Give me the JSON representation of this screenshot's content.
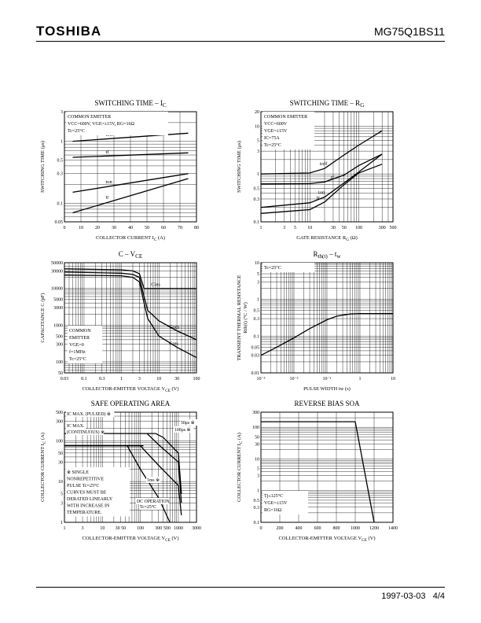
{
  "header": {
    "brand": "TOSHIBA",
    "part_number": "MG75Q1BS11"
  },
  "footer": {
    "date": "1997-03-03",
    "page": "4/4"
  },
  "chart_data": [
    {
      "id": "switching-time-ic",
      "type": "line",
      "title": "SWITCHING TIME – I",
      "title_sub": "C",
      "xlabel": "COLLECTOR CURRENT I",
      "xlabel_sub": "C",
      "xlabel_unit": "(A)",
      "ylabel": "SWITCHING TIME  (μs)",
      "xscale": "linear",
      "yscale": "log",
      "xlim": [
        0,
        80
      ],
      "ylim": [
        0.05,
        3
      ],
      "xticks": [
        0,
        10,
        20,
        30,
        40,
        50,
        60,
        70,
        80
      ],
      "yticks": [
        0.05,
        0.1,
        0.3,
        0.5,
        1,
        3
      ],
      "ytick_labels": [
        "0.05",
        "0.1",
        "0.3",
        "0.5",
        "1",
        "3"
      ],
      "notes": [
        "COMMON EMITTER",
        "VCC=600V, VGE=±15V, RG=16Ω",
        "Tc=25°C"
      ],
      "series": [
        {
          "name": "toff",
          "x": [
            5,
            75
          ],
          "y": [
            1.0,
            1.35
          ]
        },
        {
          "name": "tf",
          "x": [
            5,
            75
          ],
          "y": [
            0.55,
            0.65
          ]
        },
        {
          "name": "ton",
          "x": [
            5,
            75
          ],
          "y": [
            0.15,
            0.3
          ]
        },
        {
          "name": "tr",
          "x": [
            5,
            75
          ],
          "y": [
            0.07,
            0.25
          ]
        }
      ]
    },
    {
      "id": "switching-time-rg",
      "type": "line",
      "title": "SWITCHING TIME – R",
      "title_sub": "G",
      "xlabel": "GATE RESISTANCE  R",
      "xlabel_sub": "G",
      "xlabel_unit": "(Ω)",
      "ylabel": "SWITCHING TIME  (μs)",
      "xscale": "log",
      "yscale": "log",
      "xlim": [
        1,
        500
      ],
      "ylim": [
        0.1,
        20
      ],
      "xticks": [
        1,
        3,
        5,
        10,
        30,
        50,
        100,
        300,
        500
      ],
      "xtick_labels": [
        "1",
        "3",
        "5",
        "10",
        "30",
        "50",
        "100",
        "300",
        "500"
      ],
      "yticks": [
        0.1,
        0.3,
        0.5,
        1,
        3,
        5,
        10,
        20
      ],
      "ytick_labels": [
        "0.1",
        "0.3",
        "0.5",
        "1",
        "3",
        "5",
        "10",
        "20"
      ],
      "notes": [
        "COMMON EMITTER",
        "VCC=600V",
        "VGE=±15V",
        "IC=75A",
        "Tc=25°C"
      ],
      "series": [
        {
          "name": "toff",
          "x": [
            1,
            10,
            20,
            50,
            100,
            300
          ],
          "y": [
            1.0,
            1.05,
            1.3,
            2.5,
            4.0,
            8.0
          ]
        },
        {
          "name": "tf",
          "x": [
            1,
            10,
            20,
            50,
            100,
            300
          ],
          "y": [
            0.62,
            0.63,
            0.68,
            0.95,
            1.5,
            2.6
          ]
        },
        {
          "name": "ton",
          "x": [
            1,
            10,
            20,
            50,
            100,
            300
          ],
          "y": [
            0.2,
            0.25,
            0.33,
            0.65,
            1.1,
            2.6
          ]
        },
        {
          "name": "tr",
          "x": [
            1,
            10,
            20,
            50,
            100,
            300
          ],
          "y": [
            0.15,
            0.18,
            0.26,
            0.6,
            1.05,
            1.6
          ]
        }
      ]
    },
    {
      "id": "capacitance-vce",
      "type": "line",
      "title": "C – V",
      "title_sub": "CE",
      "xlabel": "COLLECTOR-EMITTER VOLTAGE  V",
      "xlabel_sub": "CE",
      "xlabel_unit": "(V)",
      "ylabel": "CAPACITANCE  C  (pF)",
      "xscale": "log",
      "yscale": "log",
      "xlim": [
        0.03,
        100
      ],
      "ylim": [
        50,
        50000
      ],
      "xticks": [
        0.03,
        0.1,
        0.3,
        1,
        3,
        10,
        30,
        100
      ],
      "xtick_labels": [
        "0.03",
        "0.1",
        "0.3",
        "1",
        "3",
        "10",
        "30",
        "100"
      ],
      "yticks": [
        50,
        100,
        300,
        500,
        1000,
        3000,
        5000,
        10000,
        30000,
        50000
      ],
      "ytick_labels": [
        "50",
        "100",
        "300",
        "500",
        "1000",
        "3000",
        "5000",
        "10000",
        "30000",
        "50000"
      ],
      "notes": [
        "COMMON",
        "EMITTER",
        "VGE=0",
        "f=1MHz",
        "Tc=25°C"
      ],
      "series": [
        {
          "name": "Cies",
          "x": [
            0.03,
            1,
            2,
            3,
            4,
            10,
            100
          ],
          "y": [
            34000,
            32000,
            30000,
            25000,
            10000,
            10000,
            10000
          ]
        },
        {
          "name": "Coes",
          "x": [
            0.03,
            1,
            2,
            3,
            4,
            5,
            10,
            30,
            100
          ],
          "y": [
            28000,
            26000,
            24000,
            20000,
            6000,
            2500,
            1300,
            700,
            400
          ]
        },
        {
          "name": "Cres",
          "x": [
            0.03,
            1,
            2,
            3,
            4,
            5,
            10,
            30,
            100
          ],
          "y": [
            23000,
            22000,
            20000,
            15000,
            4000,
            1500,
            500,
            250,
            130
          ]
        }
      ]
    },
    {
      "id": "thermal-resistance",
      "type": "line",
      "title": "R",
      "title_sub": "th(t)",
      "title_suffix": "– t",
      "title_suffix_sub": "w",
      "xlabel": "PULSE WIDTH  tw  (s)",
      "ylabel": "TRANSIENT THERMAL RESISTANCE",
      "ylabel2": "Rth(t)  (°C / W)",
      "xscale": "log",
      "yscale": "log",
      "xlim": [
        0.001,
        10
      ],
      "ylim": [
        0.01,
        10
      ],
      "xticks": [
        0.001,
        0.01,
        0.1,
        1,
        10
      ],
      "xtick_labels": [
        "10⁻³",
        "10⁻²",
        "10⁻¹",
        "1",
        "10"
      ],
      "yticks": [
        0.01,
        0.03,
        0.05,
        0.1,
        0.3,
        0.5,
        1,
        3,
        5,
        10
      ],
      "ytick_labels": [
        "0.01",
        "0.03",
        "0.05",
        "0.1",
        "0.3",
        "0.5",
        "1",
        "3",
        "5",
        "10"
      ],
      "notes": [
        "Tc=25°C"
      ],
      "series": [
        {
          "name": "Rth",
          "x": [
            0.001,
            0.003,
            0.01,
            0.03,
            0.1,
            0.2,
            0.5,
            1,
            10
          ],
          "y": [
            0.03,
            0.05,
            0.09,
            0.16,
            0.28,
            0.35,
            0.4,
            0.41,
            0.41
          ]
        }
      ]
    },
    {
      "id": "safe-operating-area",
      "type": "line",
      "title": "SAFE OPERATING AREA",
      "xlabel": "COLLECTOR-EMITTER VOLTAGE  V",
      "xlabel_sub": "CE",
      "xlabel_unit": "(V)",
      "ylabel": "COLLECTOR CURRENT  I",
      "ylabel_sub": "C",
      "ylabel_unit": "(A)",
      "xscale": "log",
      "yscale": "log",
      "xlim": [
        1,
        3000
      ],
      "ylim": [
        1,
        500
      ],
      "xticks": [
        1,
        3,
        10,
        30,
        50,
        100,
        300,
        500,
        1000,
        3000
      ],
      "xtick_labels": [
        "1",
        "3",
        "10",
        "30 50",
        "",
        "100",
        "300",
        "500",
        "1000",
        "3000"
      ],
      "yticks": [
        1,
        3,
        5,
        10,
        30,
        50,
        100,
        300,
        500
      ],
      "ytick_labels": [
        "1",
        "3",
        "5",
        "10",
        "30",
        "50",
        "100",
        "300",
        "500"
      ],
      "annotations": [
        "IC MAX. (PULSED) ※",
        "IC MAX.",
        "(CONTINUOUS) ※",
        "50μs ※",
        "100μs ※",
        "1ms ※",
        "DC OPERATION",
        "Tc=25°C"
      ],
      "notes": [
        "※ SINGLE",
        "NONREPETITIVE",
        "PULSE Tc=25°C",
        "CURVES MUST BE",
        "DERATED LINEARLY",
        "WITH INCREASE IN",
        "TEMPERATURE."
      ],
      "series": [
        {
          "name": "IC MAX. (PULSED)",
          "x": [
            1,
            250
          ],
          "y": [
            150,
            150
          ]
        },
        {
          "name": "IC MAX. (CONTINUOUS)",
          "x": [
            1,
            120
          ],
          "y": [
            75,
            75
          ]
        },
        {
          "name": "50μs",
          "x": [
            250,
            400,
            1000,
            1200
          ],
          "y": [
            150,
            120,
            50,
            5
          ]
        },
        {
          "name": "100μs",
          "x": [
            150,
            300,
            1000,
            1200
          ],
          "y": [
            150,
            80,
            30,
            3
          ]
        },
        {
          "name": "1ms",
          "x": [
            100,
            300,
            1000,
            1200
          ],
          "y": [
            75,
            25,
            8,
            1.5
          ]
        },
        {
          "name": "DC OPERATION",
          "x": [
            45,
            100,
            300,
            600
          ],
          "y": [
            75,
            20,
            4,
            1
          ]
        }
      ]
    },
    {
      "id": "reverse-bias-soa",
      "type": "line",
      "title": "REVERSE BIAS SOA",
      "xlabel": "COLLECTOR-EMITTER VOLTAGE  V",
      "xlabel_sub": "CE",
      "xlabel_unit": "(V)",
      "ylabel": "COLLECTOR CURRENT  I",
      "ylabel_sub": "C",
      "ylabel_unit": "(A)",
      "xscale": "linear",
      "yscale": "log",
      "xlim": [
        0,
        1400
      ],
      "ylim": [
        0.1,
        300
      ],
      "xticks": [
        0,
        200,
        400,
        600,
        800,
        1000,
        1200,
        1400
      ],
      "yticks": [
        0.1,
        0.3,
        0.5,
        1,
        3,
        5,
        10,
        30,
        50,
        100,
        300
      ],
      "ytick_labels": [
        "0.1",
        "0.3",
        "0.5",
        "1",
        "3",
        "5",
        "10",
        "30",
        "50",
        "100",
        "300"
      ],
      "notes": [
        "Tj≤125°C",
        "VGE=±15V",
        "RG=16Ω"
      ],
      "series": [
        {
          "name": "RBSOA",
          "x": [
            0,
            1000,
            1200
          ],
          "y": [
            150,
            150,
            0.1
          ]
        }
      ]
    }
  ]
}
